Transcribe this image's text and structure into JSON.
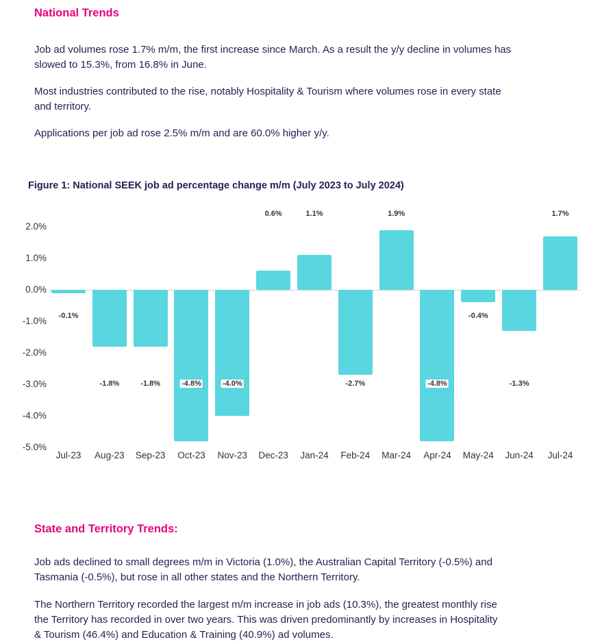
{
  "sections": {
    "national": {
      "title": "National Trends",
      "paragraphs": [
        [
          "Job ad volumes rose 1.7% m/m, the first increase since March. As a result the y/y decline in volumes has",
          "slowed to 15.3%, from 16.8% in June."
        ],
        [
          "Most industries contributed to the rise, notably Hospitality & Tourism where volumes rose in every state",
          "and territory."
        ],
        [
          "Applications per job ad rose 2.5% m/m and are 60.0% higher y/y."
        ]
      ]
    },
    "state": {
      "title": "State and Territory Trends:",
      "paragraphs": [
        [
          "Job ads declined to small degrees m/m in Victoria (1.0%), the Australian Capital Territory (-0.5%) and",
          "Tasmania (-0.5%), but rose in all other states and the Northern Territory."
        ],
        [
          "The Northern Territory recorded the largest m/m increase in job ads (10.3%), the greatest monthly rise",
          "the Territory has recorded in over two years. This was driven predominantly by increases in Hospitality",
          "& Tourism (46.4%) and Education & Training (40.9%) ad volumes."
        ]
      ]
    }
  },
  "chart_data": {
    "type": "bar",
    "title": "Figure 1: National SEEK job ad percentage change m/m (July 2023 to July 2024)",
    "categories": [
      "Jul-23",
      "Aug-23",
      "Sep-23",
      "Oct-23",
      "Nov-23",
      "Dec-23",
      "Jan-24",
      "Feb-24",
      "Mar-24",
      "Apr-24",
      "May-24",
      "Jun-24",
      "Jul-24"
    ],
    "values": [
      -0.1,
      -1.8,
      -1.8,
      -4.8,
      -4.0,
      0.6,
      1.1,
      -2.7,
      1.9,
      -4.8,
      -0.4,
      -1.3,
      1.7
    ],
    "labels": [
      "-0.1%",
      "-1.8%",
      "-1.8%",
      "-4.8%",
      "-4.0%",
      "0.6%",
      "1.1%",
      "-2.7%",
      "1.9%",
      "-4.8%",
      "-0.4%",
      "-1.3%",
      "1.7%"
    ],
    "y_ticks": [
      "2.0%",
      "1.0%",
      "0.0%",
      "-1.0%",
      "-2.0%",
      "-3.0%",
      "-4.0%",
      "-5.0%"
    ],
    "ylim": [
      -5.0,
      2.0
    ],
    "xlabel": "",
    "ylabel": "",
    "grid": "zero-line-only",
    "legend": "none",
    "bar_color": "#5AD6E0"
  },
  "colors": {
    "accent_pink": "#E60278",
    "text_navy": "#1E2154",
    "bar_teal": "#5AD6E0",
    "axis_gray": "#333333"
  }
}
